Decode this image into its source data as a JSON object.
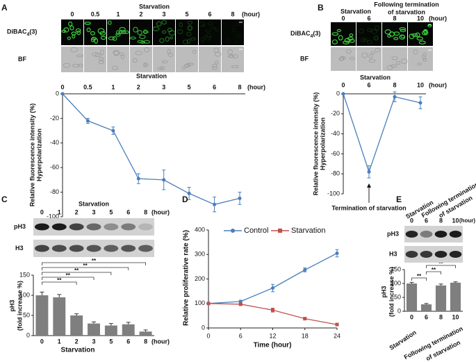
{
  "chart_data": [
    {
      "panel": "A",
      "type": "line",
      "image_header": "Starvation",
      "image_rows": [
        "DiBAC4(3)",
        "BF"
      ],
      "header": "Starvation",
      "unit": "(hour)",
      "categories": [
        "0",
        "0.5",
        "1",
        "2",
        "3",
        "5",
        "6",
        "8"
      ],
      "values": [
        0,
        -22,
        -30,
        -69,
        -70,
        -81,
        -90,
        -85
      ],
      "errors": [
        0,
        2,
        3,
        4,
        8,
        5,
        6,
        5
      ],
      "color": "#4a7ebb",
      "y_label": [
        "Relative fluorescence intensity (%)",
        "Hyperpolarization"
      ],
      "ylim": [
        -100,
        0
      ],
      "yticks": [
        0,
        -20,
        -40,
        -60,
        -80,
        -100
      ]
    },
    {
      "panel": "B",
      "type": "line",
      "image_header": "Starvation",
      "image_header_following": [
        "Following termination",
        "of starvation"
      ],
      "image_rows": [
        "DiBAC4(3)",
        "BF"
      ],
      "header": "Starvation",
      "unit": "(hour)",
      "categories": [
        "0",
        "6",
        "8",
        "10"
      ],
      "values": [
        0,
        -78,
        -3,
        -9
      ],
      "errors": [
        0,
        6,
        5,
        6
      ],
      "color": "#4a7ebb",
      "y_label": [
        "Relative fluorescence intensity (%)",
        "Hyperpolarization"
      ],
      "annotation": "Termination of starvation",
      "ylim": [
        -100,
        0
      ],
      "yticks": [
        0,
        -20,
        -40,
        -60,
        -80,
        -100
      ]
    },
    {
      "panel": "C",
      "type": "bar",
      "header": "Starvation",
      "unit": "(hour)",
      "blot_rows": [
        "pH3",
        "H3"
      ],
      "categories": [
        "0",
        "1",
        "2",
        "3",
        "5",
        "6",
        "8"
      ],
      "values": [
        100,
        95,
        50,
        30,
        25,
        28,
        10
      ],
      "errors": [
        8,
        7,
        4,
        4,
        5,
        5,
        4
      ],
      "color": "#7f7f7f",
      "x_label": "Starvation",
      "y_label": [
        "pH3",
        "(fold increase %)"
      ],
      "ylim": [
        0,
        150
      ],
      "yticks": [
        0,
        50,
        100,
        150
      ],
      "significance": [
        {
          "groups": [
            "0",
            "2"
          ],
          "label": "**"
        },
        {
          "groups": [
            "0",
            "3"
          ],
          "label": "**"
        },
        {
          "groups": [
            "0",
            "5"
          ],
          "label": "**"
        },
        {
          "groups": [
            "0",
            "6"
          ],
          "label": "**"
        },
        {
          "groups": [
            "0",
            "8"
          ],
          "label": "**"
        }
      ]
    },
    {
      "panel": "D",
      "type": "line",
      "x": [
        0,
        6,
        12,
        18,
        24
      ],
      "xlim": [
        0,
        24
      ],
      "xticks": [
        0,
        6,
        12,
        18,
        24
      ],
      "series": [
        {
          "name": "Control",
          "color": "#4a7ebb",
          "values": [
            100,
            108,
            163,
            237,
            305
          ],
          "errors": [
            3,
            5,
            15,
            8,
            15
          ]
        },
        {
          "name": "Starvation",
          "color": "#c0504d",
          "values": [
            100,
            97,
            73,
            38,
            14
          ],
          "errors": [
            3,
            5,
            8,
            5,
            3
          ]
        }
      ],
      "legend": "top",
      "x_label": "Time (hour)",
      "y_label": "Relative proliferative rate (%)",
      "ylim": [
        0,
        400
      ],
      "yticks": [
        0,
        100,
        200,
        300,
        400
      ]
    },
    {
      "panel": "E",
      "type": "bar",
      "starvation_label": "Starvation",
      "following_label": [
        "Following termination",
        "of starvation"
      ],
      "unit": "(hour)",
      "blot_rows": [
        "pH3",
        "H3"
      ],
      "categories": [
        "0",
        "6",
        "8",
        "10"
      ],
      "values": [
        100,
        25,
        93,
        103
      ],
      "errors": [
        4,
        3,
        5,
        3
      ],
      "color": "#7f7f7f",
      "y_label": [
        "pH3",
        "(fold increase %)"
      ],
      "ylim": [
        0,
        150
      ],
      "yticks": [
        0,
        50,
        100,
        150
      ],
      "significance": [
        {
          "groups": [
            "0",
            "6"
          ],
          "label": "**"
        },
        {
          "groups": [
            "6",
            "8"
          ],
          "label": "**"
        },
        {
          "groups": [
            "6",
            "10"
          ],
          "label": "**"
        }
      ]
    }
  ]
}
